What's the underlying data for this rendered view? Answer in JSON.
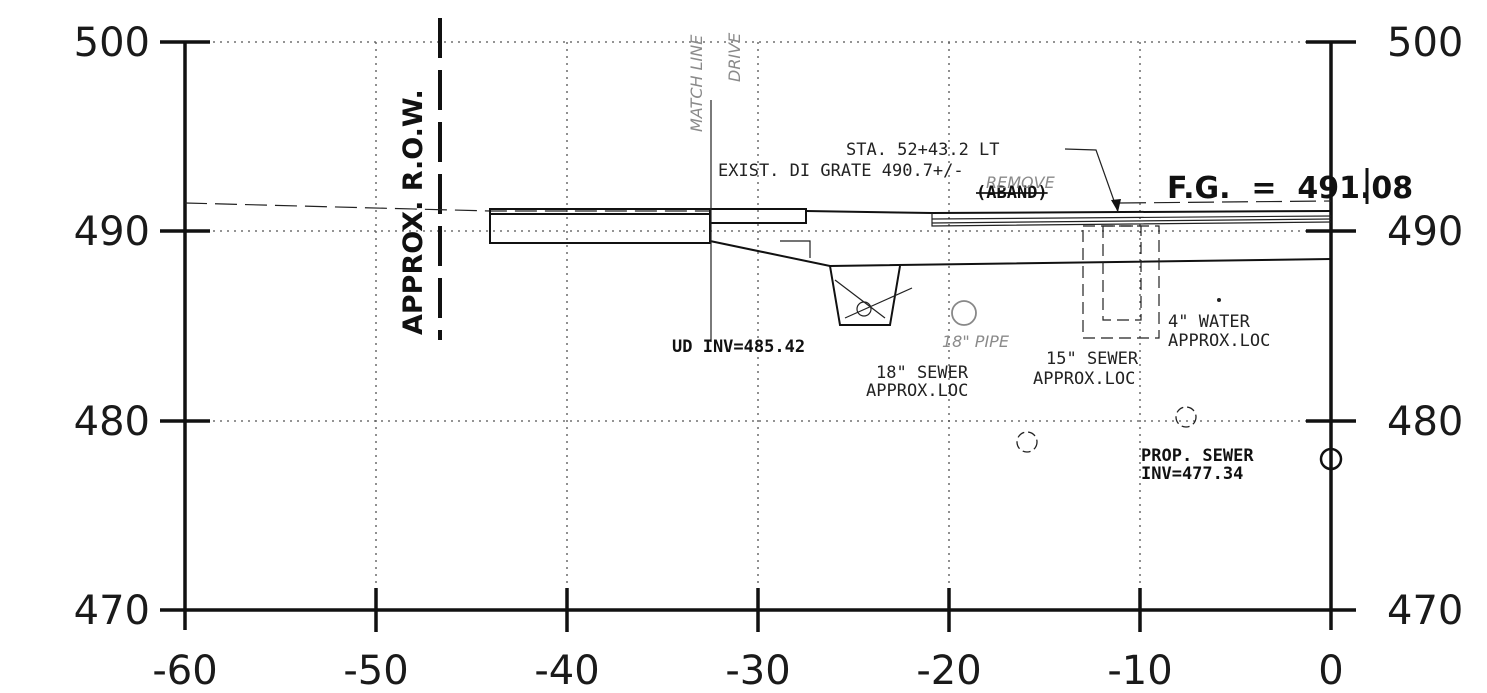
{
  "x_axis": {
    "ticks": [
      "-60",
      "-50",
      "-40",
      "-30",
      "-20",
      "-10",
      "0"
    ]
  },
  "y_axis": {
    "left_ticks": [
      "500",
      "490",
      "480",
      "470"
    ],
    "right_ticks": [
      "500",
      "490",
      "480",
      "470"
    ]
  },
  "labels": {
    "row": "APPROX. R.O.W.",
    "station": "STA. 52+43.2 LT",
    "exist_grate": "EXIST. DI GRATE 490.7+/-",
    "aband": "(ABAND)",
    "fg": "F.G.  =  491.08",
    "ud_inv": "UD INV=485.42",
    "sewer18_line1": "18\" SEWER",
    "sewer18_line2": "APPROX.LOC",
    "sewer15_line1": "15\" SEWER",
    "sewer15_line2": "APPROX.LOC",
    "water_line1": "4\" WATER",
    "water_line2": "APPROX.LOC",
    "prop_sewer_line1": "PROP. SEWER",
    "prop_sewer_line2": "INV=477.34"
  },
  "handwritten": {
    "match_line": "MATCH LINE",
    "drive": "DRIVE",
    "remove": "REMOVE",
    "pipe18": "18\" PIPE"
  }
}
